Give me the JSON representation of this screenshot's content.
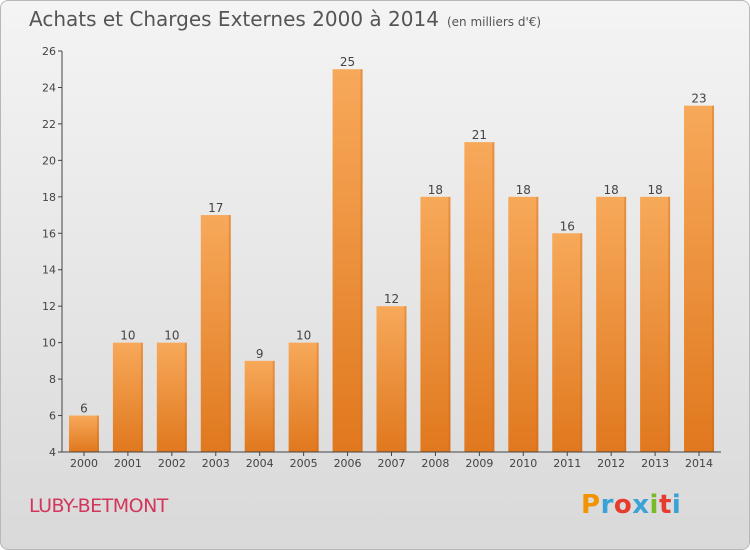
{
  "title": "Achats et Charges Externes 2000 à 2014",
  "subtitle": "(en milliers d'€)",
  "place": "LUBY-BETMONT",
  "logo": {
    "text": "Proxiti",
    "colors": [
      "#f29400",
      "#3aa3d6",
      "#e63c2e",
      "#3aa3d6",
      "#7ab929",
      "#e63c2e",
      "#3aa3d6"
    ]
  },
  "colors": {
    "bar_top": "#f7a95a",
    "bar_bottom": "#e0781e",
    "title": "#555555",
    "place": "#d2365a"
  },
  "chart_data": {
    "type": "bar",
    "categories": [
      "2000",
      "2001",
      "2002",
      "2003",
      "2004",
      "2005",
      "2006",
      "2007",
      "2008",
      "2009",
      "2010",
      "2011",
      "2012",
      "2013",
      "2014"
    ],
    "values": [
      6,
      10,
      10,
      17,
      9,
      10,
      25,
      12,
      18,
      21,
      18,
      16,
      18,
      18,
      23
    ],
    "ylim": [
      4,
      26
    ],
    "yticks": [
      4,
      6,
      8,
      10,
      12,
      14,
      16,
      18,
      20,
      22,
      24,
      26
    ],
    "grid": false,
    "data_labels": true
  }
}
